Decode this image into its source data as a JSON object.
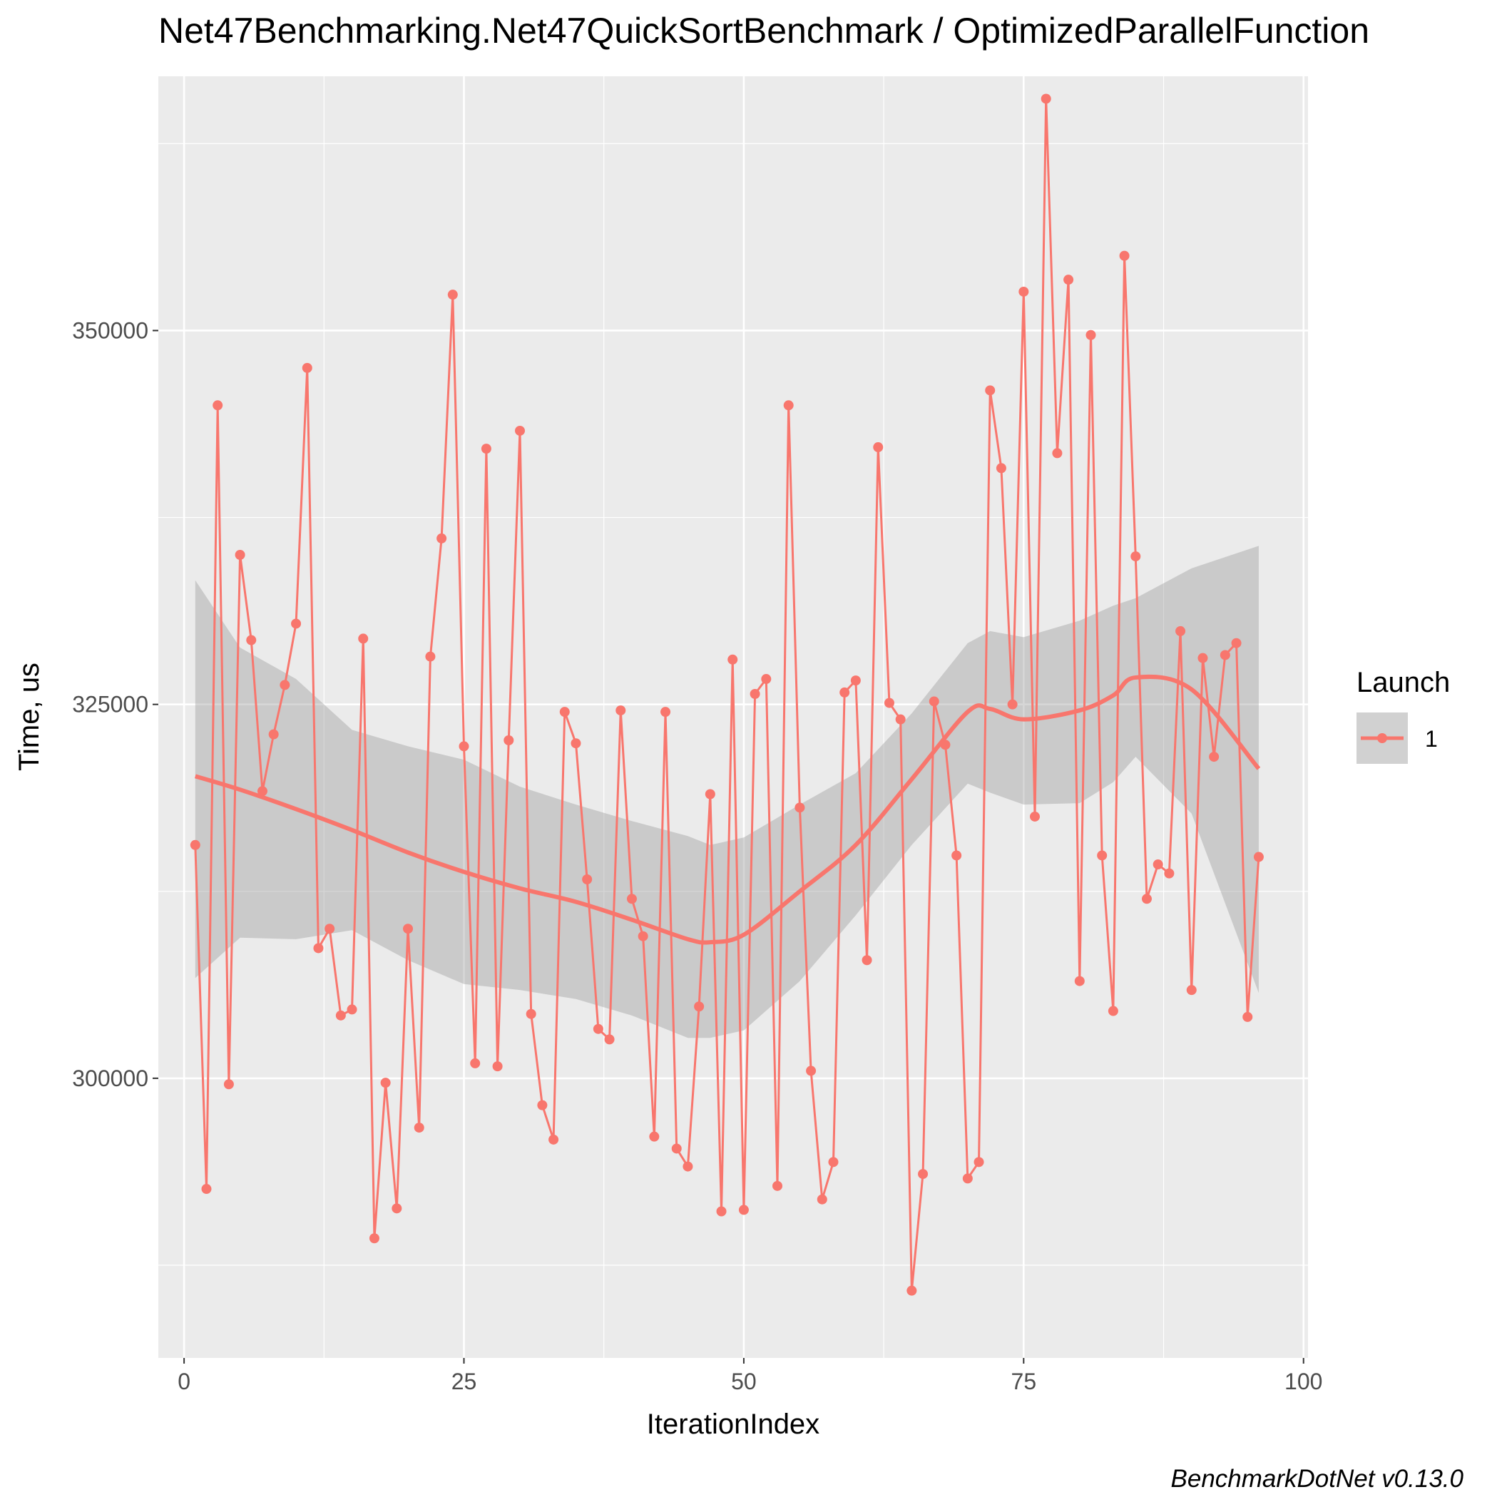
{
  "chart_data": {
    "type": "line",
    "title": "Net47Benchmarking.Net47QuickSortBenchmark / OptimizedParallelFunction",
    "xlabel": "IterationIndex",
    "ylabel": "Time, us",
    "xlim": [
      -2.3,
      100.4
    ],
    "ylim": [
      281300,
      367000
    ],
    "x_ticks": [
      0,
      25,
      50,
      75,
      100
    ],
    "x_tick_labels": [
      "0",
      "25",
      "50",
      "75",
      "100"
    ],
    "y_ticks": [
      300000,
      325000,
      350000
    ],
    "y_tick_labels": [
      "300000",
      "325000",
      "350000"
    ],
    "grid": true,
    "legend": {
      "title": "Launch",
      "placement": "right",
      "entries": [
        "1"
      ]
    },
    "caption": "BenchmarkDotNet v0.13.0",
    "colors": {
      "series": "#F8766D",
      "ribbon": "#999999",
      "panel": "#EBEBEB",
      "grid": "#FFFFFF"
    },
    "series": [
      {
        "name": "1",
        "x": [
          1,
          2,
          3,
          4,
          5,
          6,
          7,
          8,
          9,
          10,
          11,
          12,
          13,
          14,
          15,
          16,
          17,
          18,
          19,
          20,
          21,
          22,
          23,
          24,
          25,
          26,
          27,
          28,
          29,
          30,
          31,
          32,
          33,
          34,
          35,
          36,
          37,
          38,
          39,
          40,
          41,
          42,
          43,
          44,
          45,
          46,
          47,
          48,
          49,
          50,
          51,
          52,
          53,
          54,
          55,
          56,
          57,
          58,
          59,
          60,
          61,
          62,
          63,
          64,
          65,
          66,
          67,
          68,
          69,
          70,
          71,
          72,
          73,
          74,
          75,
          76,
          77,
          78,
          79,
          80,
          81,
          82,
          83,
          84,
          85,
          86,
          87,
          88,
          89,
          90,
          91,
          92,
          93,
          94,
          95,
          96
        ],
        "values": [
          315600,
          292600,
          345000,
          299600,
          335000,
          329300,
          319200,
          323000,
          326300,
          330400,
          347500,
          308700,
          310000,
          304200,
          304600,
          329400,
          289300,
          299700,
          291300,
          310000,
          296700,
          328200,
          336100,
          352400,
          322200,
          301000,
          342100,
          300800,
          322600,
          343300,
          304300,
          298200,
          295900,
          324500,
          322400,
          313300,
          303300,
          302600,
          324600,
          312000,
          309500,
          296100,
          324500,
          295300,
          294100,
          304800,
          319000,
          291100,
          328000,
          291200,
          325700,
          326700,
          292800,
          345000,
          318100,
          300500,
          291900,
          294400,
          325800,
          326600,
          307900,
          342200,
          325100,
          324000,
          285800,
          293600,
          325200,
          322300,
          314900,
          293300,
          294400,
          346000,
          340800,
          325000,
          352600,
          317500,
          365500,
          341800,
          353400,
          306500,
          349700,
          314900,
          304500,
          355000,
          334900,
          312000,
          314300,
          313700,
          329900,
          305900,
          328100,
          321500,
          328300,
          329100,
          304100,
          314800
        ]
      }
    ],
    "smooth": {
      "x": [
        1,
        5,
        10,
        15,
        20,
        25,
        30,
        35,
        40,
        45,
        47,
        50,
        55,
        60,
        65,
        70,
        72,
        75,
        80,
        83,
        85,
        90,
        96
      ],
      "fit": [
        320200,
        319300,
        318000,
        316600,
        315100,
        313800,
        312700,
        311800,
        310600,
        309300,
        309100,
        309600,
        312500,
        315600,
        320000,
        324500,
        324700,
        324000,
        324600,
        325600,
        326800,
        326000,
        320700
      ],
      "lower": [
        306700,
        309400,
        309300,
        309900,
        307900,
        306300,
        305900,
        305300,
        304200,
        302700,
        302700,
        303200,
        306500,
        310900,
        315600,
        319700,
        319100,
        318300,
        318400,
        319800,
        321500,
        317700,
        305700
      ],
      "upper": [
        333300,
        328800,
        326700,
        323300,
        322200,
        321300,
        319500,
        318300,
        317200,
        316200,
        315600,
        316100,
        318300,
        320400,
        324400,
        329100,
        329900,
        329500,
        330600,
        331600,
        332100,
        334100,
        335600
      ]
    }
  }
}
